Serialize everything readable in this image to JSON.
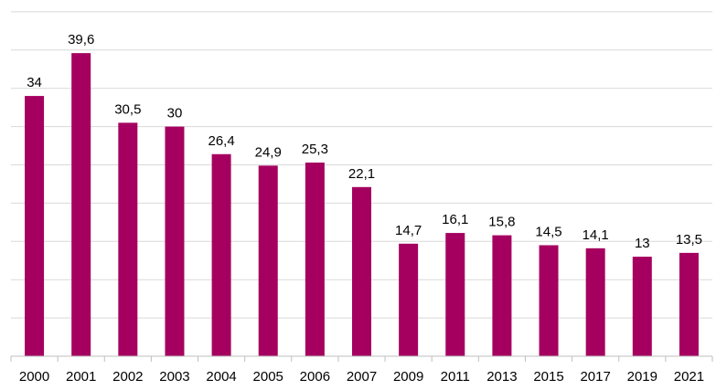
{
  "chart_data": {
    "type": "bar",
    "categories": [
      "2000",
      "2001",
      "2002",
      "2003",
      "2004",
      "2005",
      "2006",
      "2007",
      "2009",
      "2011",
      "2013",
      "2015",
      "2017",
      "2019",
      "2021"
    ],
    "values": [
      34,
      39.6,
      30.5,
      30,
      26.4,
      24.9,
      25.3,
      22.1,
      14.7,
      16.1,
      15.8,
      14.5,
      14.1,
      13,
      13.5
    ],
    "value_labels": [
      "34",
      "39,6",
      "30,5",
      "30",
      "26,4",
      "24,9",
      "25,3",
      "22,1",
      "14,7",
      "16,1",
      "15,8",
      "14,5",
      "14,1",
      "13",
      "13,5"
    ],
    "ylim": [
      0,
      45
    ],
    "grid": true,
    "legend": "none",
    "bar_color": "#a50060"
  }
}
